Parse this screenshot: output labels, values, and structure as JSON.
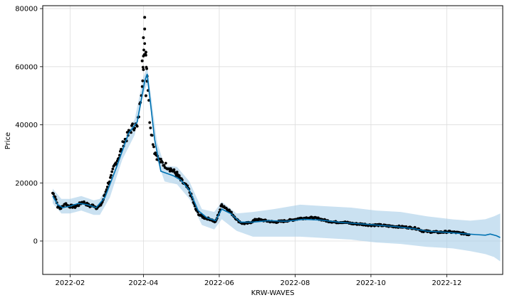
{
  "chart_data": {
    "type": "line",
    "xlabel": "KRW-WAVES",
    "ylabel": "Price",
    "x_range": [
      "2022-01-10",
      "2023-01-15"
    ],
    "ylim": [
      -11500,
      81000
    ],
    "grid": true,
    "x_ticks": [
      {
        "date": "2022-02-01",
        "label": "2022-02"
      },
      {
        "date": "2022-04-01",
        "label": "2022-04"
      },
      {
        "date": "2022-06-01",
        "label": "2022-06"
      },
      {
        "date": "2022-08-01",
        "label": "2022-08"
      },
      {
        "date": "2022-10-01",
        "label": "2022-10"
      },
      {
        "date": "2022-12-01",
        "label": "2022-12"
      }
    ],
    "y_ticks": [
      {
        "value": 0,
        "label": "0"
      },
      {
        "value": 20000,
        "label": "20000"
      },
      {
        "value": 40000,
        "label": "40000"
      },
      {
        "value": 60000,
        "label": "60000"
      },
      {
        "value": 80000,
        "label": "80000"
      }
    ],
    "colors": {
      "observed": "#000000",
      "forecast": "#0072B2",
      "interval": "#a6cde8"
    },
    "observed": [
      [
        "2022-01-18",
        16500
      ],
      [
        "2022-01-20",
        15500
      ],
      [
        "2022-01-22",
        12000
      ],
      [
        "2022-01-24",
        11200
      ],
      [
        "2022-01-26",
        11800
      ],
      [
        "2022-01-28",
        13000
      ],
      [
        "2022-01-30",
        12200
      ],
      [
        "2022-02-01",
        12000
      ],
      [
        "2022-02-05",
        11800
      ],
      [
        "2022-02-08",
        12500
      ],
      [
        "2022-02-11",
        13500
      ],
      [
        "2022-02-14",
        12800
      ],
      [
        "2022-02-17",
        12000
      ],
      [
        "2022-02-20",
        12300
      ],
      [
        "2022-02-22",
        11500
      ],
      [
        "2022-02-25",
        12000
      ],
      [
        "2022-02-27",
        13500
      ],
      [
        "2022-03-01",
        16000
      ],
      [
        "2022-03-03",
        19000
      ],
      [
        "2022-03-06",
        22000
      ],
      [
        "2022-03-08",
        25000
      ],
      [
        "2022-03-11",
        28000
      ],
      [
        "2022-03-14",
        31000
      ],
      [
        "2022-03-16",
        34000
      ],
      [
        "2022-03-19",
        36000
      ],
      [
        "2022-03-22",
        38500
      ],
      [
        "2022-03-25",
        40000
      ],
      [
        "2022-03-27",
        39000
      ],
      [
        "2022-03-29",
        46000
      ],
      [
        "2022-03-31",
        55000
      ],
      [
        "2022-04-01",
        62000
      ],
      [
        "2022-04-02",
        68000
      ],
      [
        "2022-04-03",
        64000
      ],
      [
        "2022-04-04",
        58000
      ],
      [
        "2022-04-06",
        42000
      ],
      [
        "2022-04-08",
        36000
      ],
      [
        "2022-04-10",
        31000
      ],
      [
        "2022-04-13",
        28000
      ],
      [
        "2022-04-17",
        26500
      ],
      [
        "2022-04-21",
        25500
      ],
      [
        "2022-04-25",
        24000
      ],
      [
        "2022-04-28",
        23000
      ],
      [
        "2022-05-01",
        21000
      ],
      [
        "2022-05-04",
        19500
      ],
      [
        "2022-05-07",
        18000
      ],
      [
        "2022-05-10",
        15000
      ],
      [
        "2022-05-13",
        11000
      ],
      [
        "2022-05-16",
        9000
      ],
      [
        "2022-05-20",
        8000
      ],
      [
        "2022-05-25",
        7500
      ],
      [
        "2022-05-29",
        6500
      ],
      [
        "2022-06-01",
        10000
      ],
      [
        "2022-06-03",
        12500
      ],
      [
        "2022-06-06",
        11500
      ],
      [
        "2022-06-09",
        10500
      ],
      [
        "2022-06-12",
        9000
      ],
      [
        "2022-06-16",
        7000
      ],
      [
        "2022-06-20",
        6000
      ],
      [
        "2022-06-25",
        6200
      ],
      [
        "2022-07-01",
        7500
      ],
      [
        "2022-07-08",
        7000
      ],
      [
        "2022-07-15",
        6500
      ],
      [
        "2022-07-22",
        6800
      ],
      [
        "2022-07-29",
        7200
      ],
      [
        "2022-08-05",
        7800
      ],
      [
        "2022-08-12",
        8000
      ],
      [
        "2022-08-19",
        7800
      ],
      [
        "2022-08-26",
        7000
      ],
      [
        "2022-09-02",
        6500
      ],
      [
        "2022-09-09",
        6500
      ],
      [
        "2022-09-16",
        6000
      ],
      [
        "2022-09-23",
        5800
      ],
      [
        "2022-09-30",
        5500
      ],
      [
        "2022-10-07",
        5500
      ],
      [
        "2022-10-14",
        5200
      ],
      [
        "2022-10-21",
        5000
      ],
      [
        "2022-10-28",
        4800
      ],
      [
        "2022-11-04",
        4500
      ],
      [
        "2022-11-08",
        4200
      ],
      [
        "2022-11-11",
        3500
      ],
      [
        "2022-11-18",
        3200
      ],
      [
        "2022-11-25",
        3000
      ],
      [
        "2022-12-02",
        3200
      ],
      [
        "2022-12-09",
        2900
      ],
      [
        "2022-12-16",
        2500
      ],
      [
        "2022-12-19",
        2200
      ]
    ],
    "spikes": [
      [
        "2022-04-02",
        77000
      ],
      [
        "2022-04-02",
        73000
      ],
      [
        "2022-04-01",
        70000
      ],
      [
        "2022-04-03",
        65000
      ],
      [
        "2022-03-31",
        62000
      ],
      [
        "2022-04-01",
        59000
      ],
      [
        "2022-04-04",
        55000
      ],
      [
        "2022-04-03",
        50000
      ]
    ],
    "forecast": [
      [
        "2022-01-18",
        15500
      ],
      [
        "2022-01-22",
        12500
      ],
      [
        "2022-01-26",
        11500
      ],
      [
        "2022-02-01",
        12000
      ],
      [
        "2022-02-08",
        13000
      ],
      [
        "2022-02-15",
        12500
      ],
      [
        "2022-02-22",
        11500
      ],
      [
        "2022-03-01",
        15000
      ],
      [
        "2022-03-10",
        25000
      ],
      [
        "2022-03-20",
        37000
      ],
      [
        "2022-03-27",
        41000
      ],
      [
        "2022-04-02",
        55000
      ],
      [
        "2022-04-04",
        57500
      ],
      [
        "2022-04-10",
        35000
      ],
      [
        "2022-04-15",
        24000
      ],
      [
        "2022-04-25",
        22500
      ],
      [
        "2022-05-01",
        21000
      ],
      [
        "2022-05-08",
        17500
      ],
      [
        "2022-05-15",
        10500
      ],
      [
        "2022-05-22",
        8000
      ],
      [
        "2022-05-29",
        7000
      ],
      [
        "2022-06-03",
        11000
      ],
      [
        "2022-06-10",
        9500
      ],
      [
        "2022-06-18",
        6500
      ],
      [
        "2022-06-28",
        6500
      ],
      [
        "2022-07-10",
        7000
      ],
      [
        "2022-07-25",
        6800
      ],
      [
        "2022-08-08",
        7500
      ],
      [
        "2022-08-22",
        7200
      ],
      [
        "2022-09-05",
        6500
      ],
      [
        "2022-09-20",
        6000
      ],
      [
        "2022-10-05",
        5500
      ],
      [
        "2022-10-20",
        5000
      ],
      [
        "2022-11-05",
        4200
      ],
      [
        "2022-11-15",
        3400
      ],
      [
        "2022-11-30",
        3000
      ],
      [
        "2022-12-15",
        2500
      ],
      [
        "2022-12-25",
        2200
      ],
      [
        "2023-01-01",
        2000
      ],
      [
        "2023-01-05",
        2400
      ],
      [
        "2023-01-10",
        1800
      ],
      [
        "2023-01-13",
        1200
      ]
    ],
    "interval": [
      [
        "2022-01-18",
        13000,
        18000
      ],
      [
        "2022-01-25",
        9500,
        14500
      ],
      [
        "2022-02-01",
        9500,
        14500
      ],
      [
        "2022-02-10",
        10500,
        15500
      ],
      [
        "2022-02-20",
        9000,
        14000
      ],
      [
        "2022-02-25",
        9000,
        14500
      ],
      [
        "2022-03-05",
        15000,
        20000
      ],
      [
        "2022-03-15",
        28000,
        33000
      ],
      [
        "2022-03-25",
        36500,
        42000
      ],
      [
        "2022-04-01",
        50500,
        56500
      ],
      [
        "2022-04-04",
        54000,
        60000
      ],
      [
        "2022-04-12",
        28000,
        34000
      ],
      [
        "2022-04-18",
        20500,
        26000
      ],
      [
        "2022-04-28",
        19500,
        25500
      ],
      [
        "2022-05-08",
        14500,
        20500
      ],
      [
        "2022-05-18",
        5500,
        11000
      ],
      [
        "2022-05-28",
        4000,
        10000
      ],
      [
        "2022-06-03",
        7500,
        13500
      ],
      [
        "2022-06-15",
        3500,
        9500
      ],
      [
        "2022-06-28",
        1500,
        10000
      ],
      [
        "2022-07-15",
        1500,
        11000
      ],
      [
        "2022-08-05",
        1500,
        12500
      ],
      [
        "2022-08-25",
        1000,
        12000
      ],
      [
        "2022-09-15",
        500,
        11500
      ],
      [
        "2022-10-05",
        -500,
        10500
      ],
      [
        "2022-10-25",
        -1000,
        10000
      ],
      [
        "2022-11-15",
        -2000,
        8500
      ],
      [
        "2022-12-05",
        -2500,
        7500
      ],
      [
        "2022-12-20",
        -3500,
        7000
      ],
      [
        "2023-01-01",
        -4500,
        7500
      ],
      [
        "2023-01-08",
        -5500,
        8500
      ],
      [
        "2023-01-13",
        -7000,
        9500
      ]
    ]
  }
}
